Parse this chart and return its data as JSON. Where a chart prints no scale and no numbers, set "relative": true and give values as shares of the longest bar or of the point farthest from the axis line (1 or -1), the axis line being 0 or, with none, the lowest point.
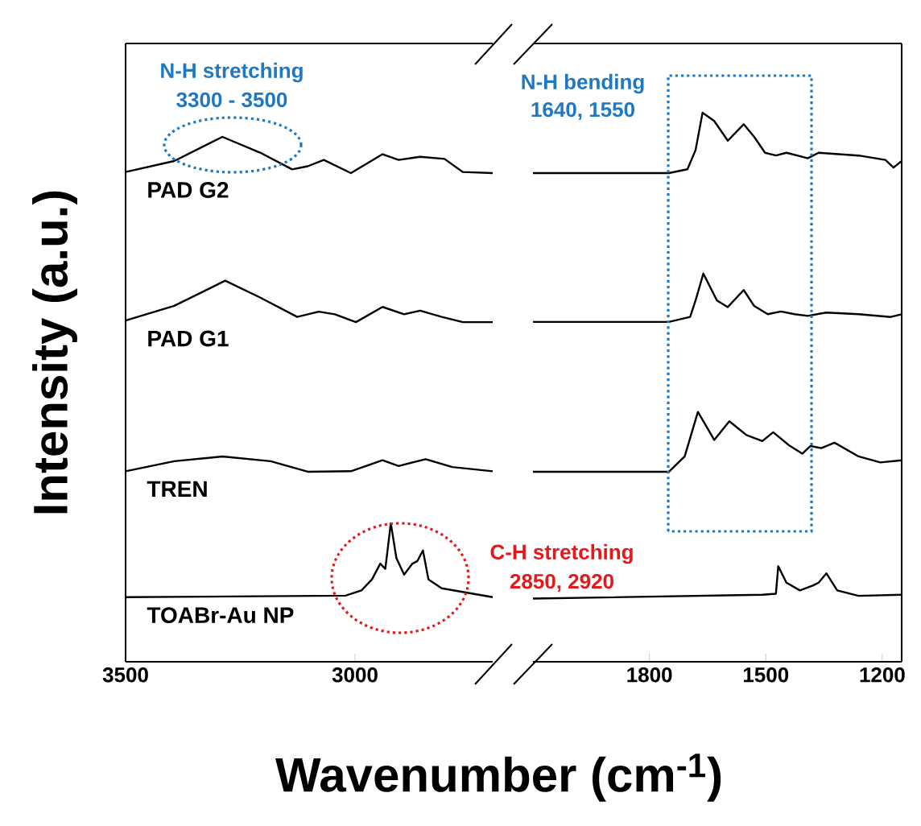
{
  "chart_data": [
    {
      "type": "line",
      "relative": true,
      "ylabel": "Intensity (a.u.)",
      "xlabel": "Wavenumber (cm$^{-1}$)",
      "xlim": [
        3500,
        2700
      ],
      "xticks": [
        3500,
        3000
      ],
      "annotations": [
        "N-H stretching",
        "3300 - 3500",
        "C-H stretching",
        "2850, 2920"
      ],
      "series": [
        {
          "name": "PAD G2",
          "color": "#000000",
          "x": [
            3500,
            3394,
            3289,
            3207,
            3137,
            3103,
            3068,
            3009,
            2940,
            2905,
            2858,
            2805,
            2765,
            2700
          ],
          "values": [
            0.933,
            0.954,
            1.0,
            0.97,
            0.938,
            0.944,
            0.956,
            0.931,
            0.967,
            0.956,
            0.962,
            0.958,
            0.933,
            0.931
          ]
        },
        {
          "name": "PAD G1",
          "color": "#000000",
          "x": [
            3500,
            3394,
            3283,
            3207,
            3126,
            3079,
            3044,
            2998,
            2940,
            2893,
            2858,
            2811,
            2765,
            2700
          ],
          "values": [
            0.65,
            0.678,
            0.726,
            0.694,
            0.657,
            0.667,
            0.662,
            0.647,
            0.676,
            0.662,
            0.669,
            0.657,
            0.647,
            0.647
          ]
        },
        {
          "name": "TREN",
          "color": "#000000",
          "x": [
            3500,
            3394,
            3289,
            3184,
            3103,
            3009,
            2940,
            2905,
            2846,
            2788,
            2700
          ],
          "values": [
            0.363,
            0.382,
            0.391,
            0.382,
            0.362,
            0.363,
            0.384,
            0.373,
            0.386,
            0.371,
            0.363
          ]
        },
        {
          "name": "TOABr-Au NP",
          "color": "#000000",
          "x": [
            3500,
            3021,
            2986,
            2963,
            2945,
            2934,
            2922,
            2910,
            2893,
            2875,
            2864,
            2852,
            2840,
            2811,
            2700
          ],
          "values": [
            0.123,
            0.126,
            0.136,
            0.157,
            0.187,
            0.177,
            0.264,
            0.198,
            0.166,
            0.187,
            0.192,
            0.212,
            0.157,
            0.14,
            0.123
          ]
        }
      ]
    },
    {
      "type": "line",
      "relative": true,
      "xlim": [
        2100,
        1150
      ],
      "xticks": [
        1800,
        1500,
        1200
      ],
      "annotations": [
        "N-H bending",
        "1640, 1550"
      ],
      "series": [
        {
          "color": "#000000",
          "x": [
            2100,
            1750,
            1702,
            1681,
            1663,
            1633,
            1598,
            1557,
            1530,
            1502,
            1474,
            1447,
            1419,
            1392,
            1364,
            1261,
            1192,
            1171,
            1150
          ],
          "values": [
            0.89,
            0.89,
            0.897,
            0.932,
            1.0,
            0.985,
            0.949,
            0.979,
            0.956,
            0.927,
            0.922,
            0.927,
            0.922,
            0.917,
            0.927,
            0.922,
            0.914,
            0.9,
            0.912
          ]
        },
        {
          "color": "#000000",
          "x": [
            2100,
            1750,
            1695,
            1681,
            1661,
            1626,
            1598,
            1557,
            1530,
            1495,
            1461,
            1426,
            1392,
            1344,
            1261,
            1178,
            1150
          ],
          "values": [
            0.619,
            0.619,
            0.628,
            0.658,
            0.707,
            0.658,
            0.646,
            0.677,
            0.648,
            0.633,
            0.638,
            0.633,
            0.63,
            0.636,
            0.633,
            0.628,
            0.633
          ]
        },
        {
          "color": "#000000",
          "x": [
            2100,
            1750,
            1709,
            1675,
            1633,
            1594,
            1550,
            1509,
            1481,
            1440,
            1406,
            1385,
            1357,
            1323,
            1261,
            1205,
            1150
          ],
          "values": [
            0.346,
            0.346,
            0.374,
            0.455,
            0.404,
            0.438,
            0.413,
            0.402,
            0.418,
            0.394,
            0.379,
            0.393,
            0.389,
            0.399,
            0.374,
            0.363,
            0.367
          ]
        },
        {
          "color": "#000000",
          "x": [
            2100,
            1509,
            1474,
            1468,
            1447,
            1412,
            1378,
            1364,
            1344,
            1316,
            1261,
            1150
          ],
          "values": [
            0.115,
            0.122,
            0.124,
            0.174,
            0.144,
            0.13,
            0.139,
            0.144,
            0.161,
            0.13,
            0.12,
            0.122
          ]
        }
      ]
    }
  ]
}
